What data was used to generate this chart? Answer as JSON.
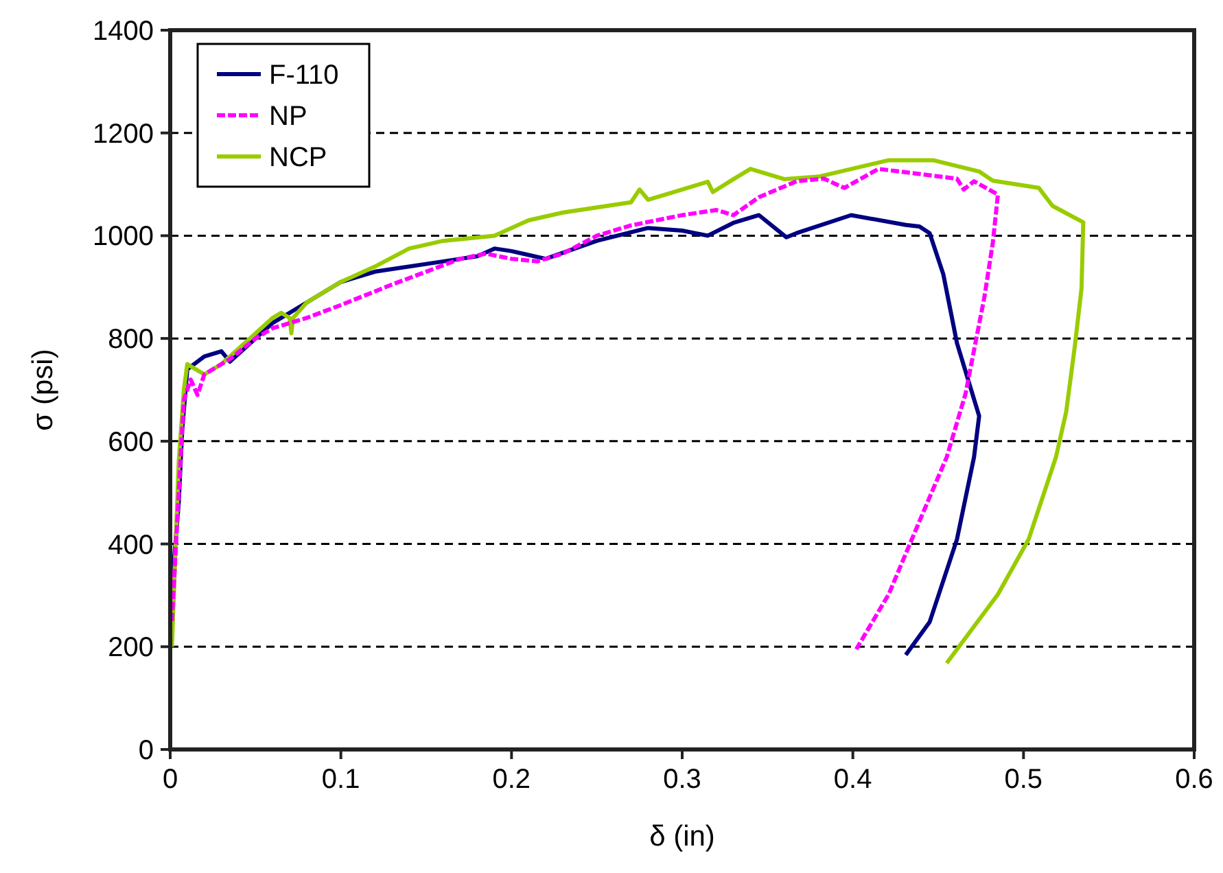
{
  "chart_data": {
    "type": "line",
    "xlabel": "δ (in)",
    "ylabel": "σ (psi)",
    "xlim": [
      0,
      0.6
    ],
    "xticks": [
      0,
      0.1,
      0.2,
      0.3,
      0.4,
      0.5,
      0.6
    ],
    "ylim": [
      0,
      1400
    ],
    "yticks": [
      0,
      200,
      400,
      600,
      800,
      1000,
      1200,
      1400
    ],
    "grid": "y",
    "legend": "top left",
    "marker": "none",
    "series": [
      {
        "name": "F-110",
        "color": "#000080",
        "line_style": "solid",
        "x": [
          0.001,
          0.005,
          0.007,
          0.01,
          0.02,
          0.03,
          0.035,
          0.05,
          0.06,
          0.07,
          0.08,
          0.1,
          0.12,
          0.15,
          0.18,
          0.19,
          0.2,
          0.22,
          0.25,
          0.28,
          0.3,
          0.315,
          0.33,
          0.345,
          0.361,
          0.367,
          0.399,
          0.431,
          0.439,
          0.445,
          0.453,
          0.461,
          0.474,
          0.471,
          0.461,
          0.445,
          0.431
        ],
        "values": [
          320,
          480,
          620,
          740,
          765,
          775,
          755,
          800,
          830,
          850,
          870,
          910,
          930,
          945,
          960,
          975,
          970,
          955,
          990,
          1015,
          1010,
          1000,
          1025,
          1040,
          997,
          1005,
          1040,
          1021,
          1018,
          1005,
          925,
          791,
          649,
          569,
          409,
          248,
          184
        ]
      },
      {
        "name": "NP",
        "color": "#ff00ff",
        "line_style": "dashed",
        "x": [
          0.001,
          0.005,
          0.008,
          0.012,
          0.016,
          0.02,
          0.035,
          0.05,
          0.06,
          0.08,
          0.1,
          0.13,
          0.15,
          0.17,
          0.185,
          0.2,
          0.215,
          0.23,
          0.25,
          0.27,
          0.3,
          0.32,
          0.33,
          0.345,
          0.367,
          0.383,
          0.395,
          0.415,
          0.461,
          0.465,
          0.471,
          0.485,
          0.482,
          0.477,
          0.466,
          0.455,
          0.439,
          0.421,
          0.402
        ],
        "values": [
          250,
          500,
          680,
          720,
          690,
          730,
          760,
          800,
          820,
          840,
          865,
          905,
          930,
          955,
          965,
          955,
          950,
          965,
          1000,
          1020,
          1040,
          1050,
          1040,
          1075,
          1106,
          1111,
          1093,
          1130,
          1111,
          1090,
          1106,
          1080,
          986,
          879,
          692,
          569,
          444,
          302,
          195
        ]
      },
      {
        "name": "NCP",
        "color": "#99cc00",
        "line_style": "solid",
        "x": [
          0.001,
          0.003,
          0.005,
          0.008,
          0.01,
          0.015,
          0.02,
          0.03,
          0.04,
          0.05,
          0.06,
          0.065,
          0.07,
          0.071,
          0.072,
          0.08,
          0.1,
          0.12,
          0.14,
          0.16,
          0.19,
          0.21,
          0.23,
          0.25,
          0.27,
          0.275,
          0.28,
          0.3,
          0.315,
          0.318,
          0.33,
          0.34,
          0.36,
          0.38,
          0.421,
          0.447,
          0.474,
          0.482,
          0.509,
          0.517,
          0.535,
          0.534,
          0.53,
          0.525,
          0.519,
          0.503,
          0.485,
          0.455
        ],
        "values": [
          200,
          380,
          560,
          700,
          750,
          740,
          730,
          750,
          780,
          810,
          840,
          850,
          840,
          810,
          840,
          870,
          910,
          940,
          975,
          990,
          1000,
          1030,
          1045,
          1055,
          1065,
          1090,
          1070,
          1090,
          1105,
          1085,
          1110,
          1130,
          1110,
          1115,
          1147,
          1147,
          1125,
          1107,
          1093,
          1058,
          1026,
          898,
          783,
          657,
          569,
          409,
          302,
          168
        ]
      }
    ]
  }
}
